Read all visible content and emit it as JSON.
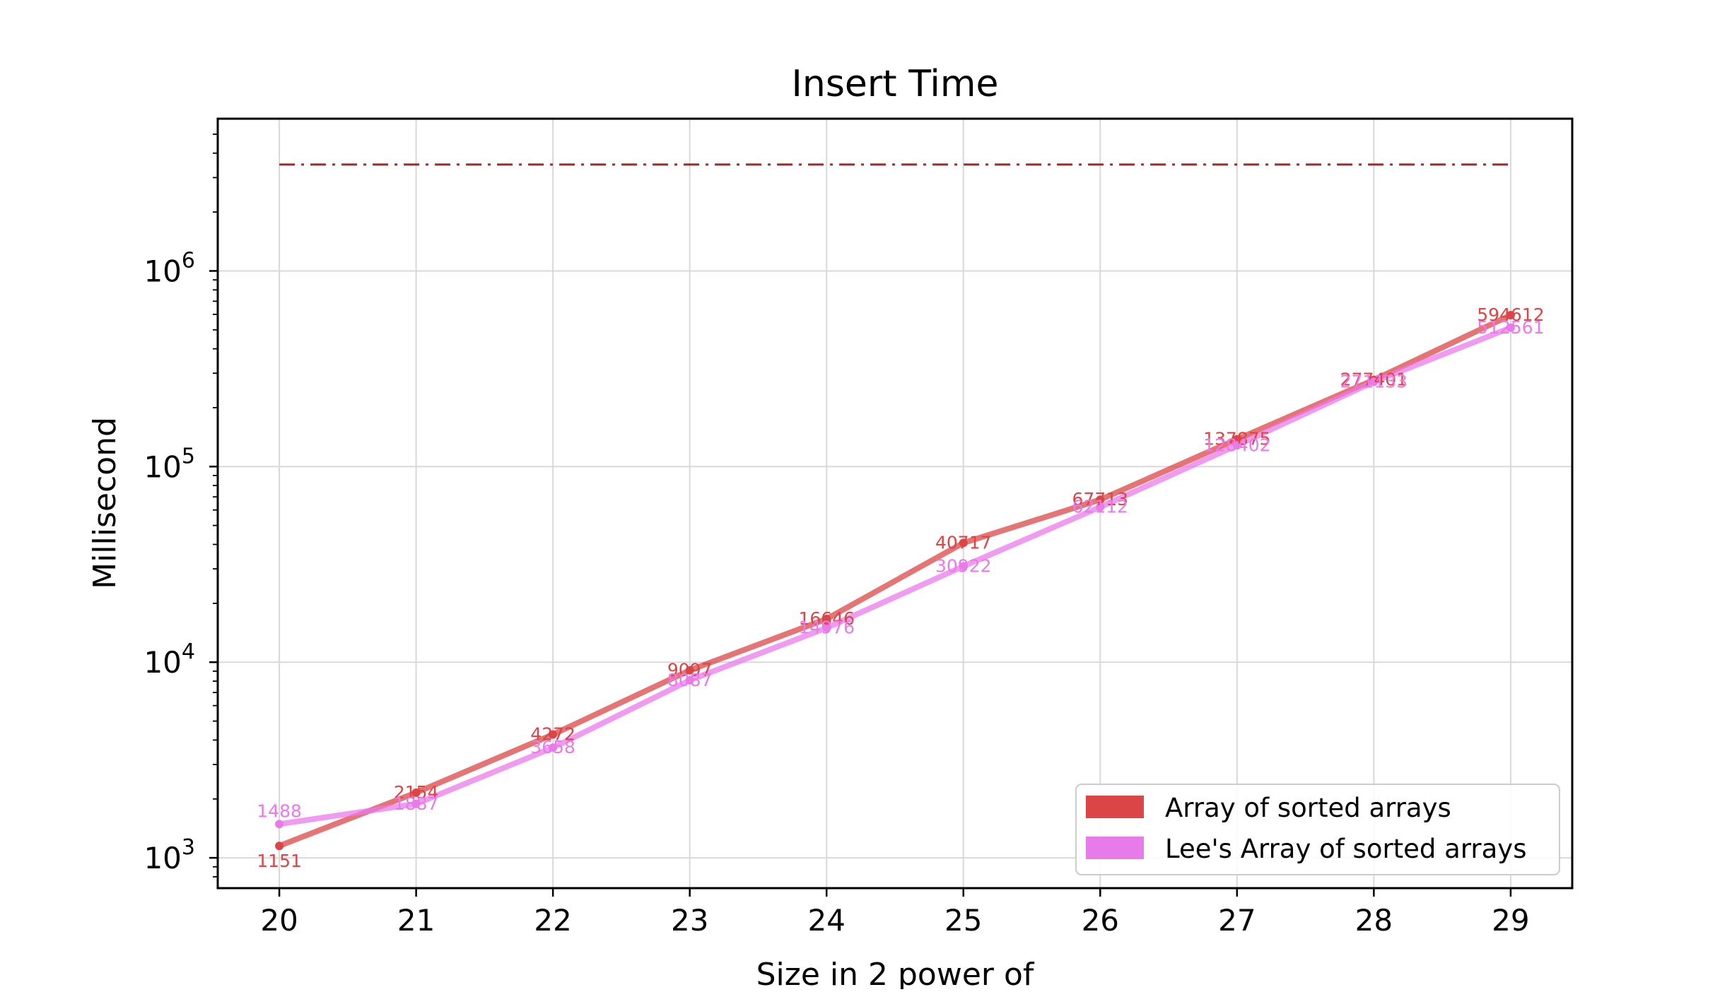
{
  "chart_data": {
    "type": "line",
    "title": "Insert Time",
    "xlabel": "Size in 2 power of",
    "ylabel": "Millisecond",
    "yscale": "log",
    "ylim": [
      700,
      6000000
    ],
    "xlim": [
      19.55,
      29.45
    ],
    "grid": true,
    "legend_position": "lower-right",
    "categories": [
      20,
      21,
      22,
      23,
      24,
      25,
      26,
      27,
      28,
      29
    ],
    "x_tick_labels": [
      "20",
      "21",
      "22",
      "23",
      "24",
      "25",
      "26",
      "27",
      "28",
      "29"
    ],
    "y_ticks": [
      {
        "value": 1000,
        "base": "10",
        "exponent": "3"
      },
      {
        "value": 10000,
        "base": "10",
        "exponent": "4"
      },
      {
        "value": 100000,
        "base": "10",
        "exponent": "5"
      },
      {
        "value": 1000000,
        "base": "10",
        "exponent": "6"
      }
    ],
    "reference_line": {
      "value": 3500000,
      "color": "#9b2a2a",
      "style": "dash-dot"
    },
    "series": [
      {
        "name": "Array of sorted arrays",
        "color": "#dc4545",
        "values": [
          1151,
          2154,
          4272,
          9097,
          16646,
          40717,
          67713,
          137875,
          277401,
          594612
        ],
        "labels": [
          "1151",
          "2154",
          "4272",
          "9097",
          "16646",
          "40717",
          "67713",
          "137875",
          "277401",
          "594612"
        ]
      },
      {
        "name": "Lee's Array of sorted arrays",
        "color": "#e97ae9",
        "values": [
          1488,
          1887,
          3658,
          8087,
          14976,
          30922,
          62112,
          128402,
          271133,
          512561
        ],
        "labels": [
          "1488",
          "1887",
          "3658",
          "8087",
          "14976",
          "30922",
          "62112",
          "128402",
          "271133",
          "512561"
        ]
      }
    ]
  }
}
